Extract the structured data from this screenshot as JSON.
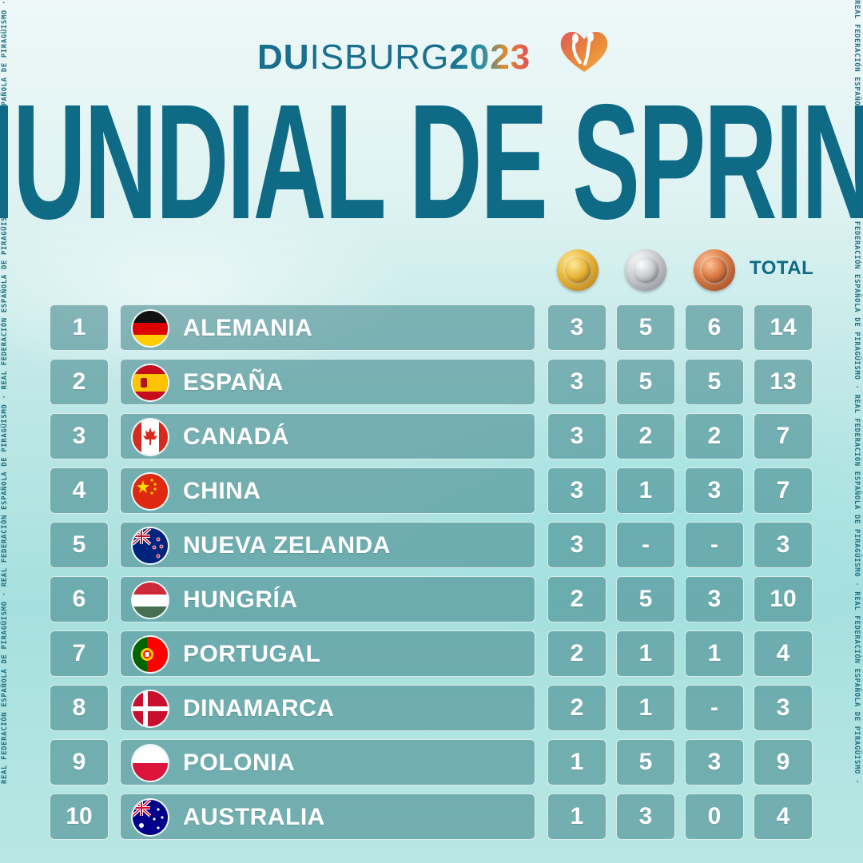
{
  "side_text": "REAL FEDERACIÓN ESPAÑOLA DE PIRAGÜISMO · REAL FEDERACIÓN ESPAÑOLA DE PIRAGÜISMO · REAL FEDERACIÓN ESPAÑOLA DE PIRAGÜISMO · REAL FEDERACIÓN ESPAÑOLA DE PIRAGÜISMO ·",
  "brand": {
    "part1": "DU",
    "part2": "ISBURG",
    "year": "2023"
  },
  "title": "MUNDIAL DE SPRINT",
  "headers": {
    "total": "TOTAL",
    "medal_icons": [
      "gold-medal-icon",
      "silver-medal-icon",
      "bronze-medal-icon"
    ]
  },
  "colors": {
    "title": "#0f6a86",
    "gold": "#e8b637",
    "silver": "#c9cbcf",
    "bronze": "#d97a44"
  },
  "rows": [
    {
      "rank": "1",
      "country": "ALEMANIA",
      "flag": "germany-flag-icon",
      "gold": "3",
      "silver": "5",
      "bronze": "6",
      "total": "14"
    },
    {
      "rank": "2",
      "country": "ESPAÑA",
      "flag": "spain-flag-icon",
      "gold": "3",
      "silver": "5",
      "bronze": "5",
      "total": "13"
    },
    {
      "rank": "3",
      "country": "CANADÁ",
      "flag": "canada-flag-icon",
      "gold": "3",
      "silver": "2",
      "bronze": "2",
      "total": "7"
    },
    {
      "rank": "4",
      "country": "CHINA",
      "flag": "china-flag-icon",
      "gold": "3",
      "silver": "1",
      "bronze": "3",
      "total": "7"
    },
    {
      "rank": "5",
      "country": "NUEVA ZELANDA",
      "flag": "new-zealand-flag-icon",
      "gold": "3",
      "silver": "-",
      "bronze": "-",
      "total": "3"
    },
    {
      "rank": "6",
      "country": "HUNGRÍA",
      "flag": "hungary-flag-icon",
      "gold": "2",
      "silver": "5",
      "bronze": "3",
      "total": "10"
    },
    {
      "rank": "7",
      "country": "PORTUGAL",
      "flag": "portugal-flag-icon",
      "gold": "2",
      "silver": "1",
      "bronze": "1",
      "total": "4"
    },
    {
      "rank": "8",
      "country": "DINAMARCA",
      "flag": "denmark-flag-icon",
      "gold": "2",
      "silver": "1",
      "bronze": "-",
      "total": "3"
    },
    {
      "rank": "9",
      "country": "POLONIA",
      "flag": "poland-flag-icon",
      "gold": "1",
      "silver": "5",
      "bronze": "3",
      "total": "9"
    },
    {
      "rank": "10",
      "country": "AUSTRALIA",
      "flag": "australia-flag-icon",
      "gold": "1",
      "silver": "3",
      "bronze": "0",
      "total": "4"
    }
  ]
}
